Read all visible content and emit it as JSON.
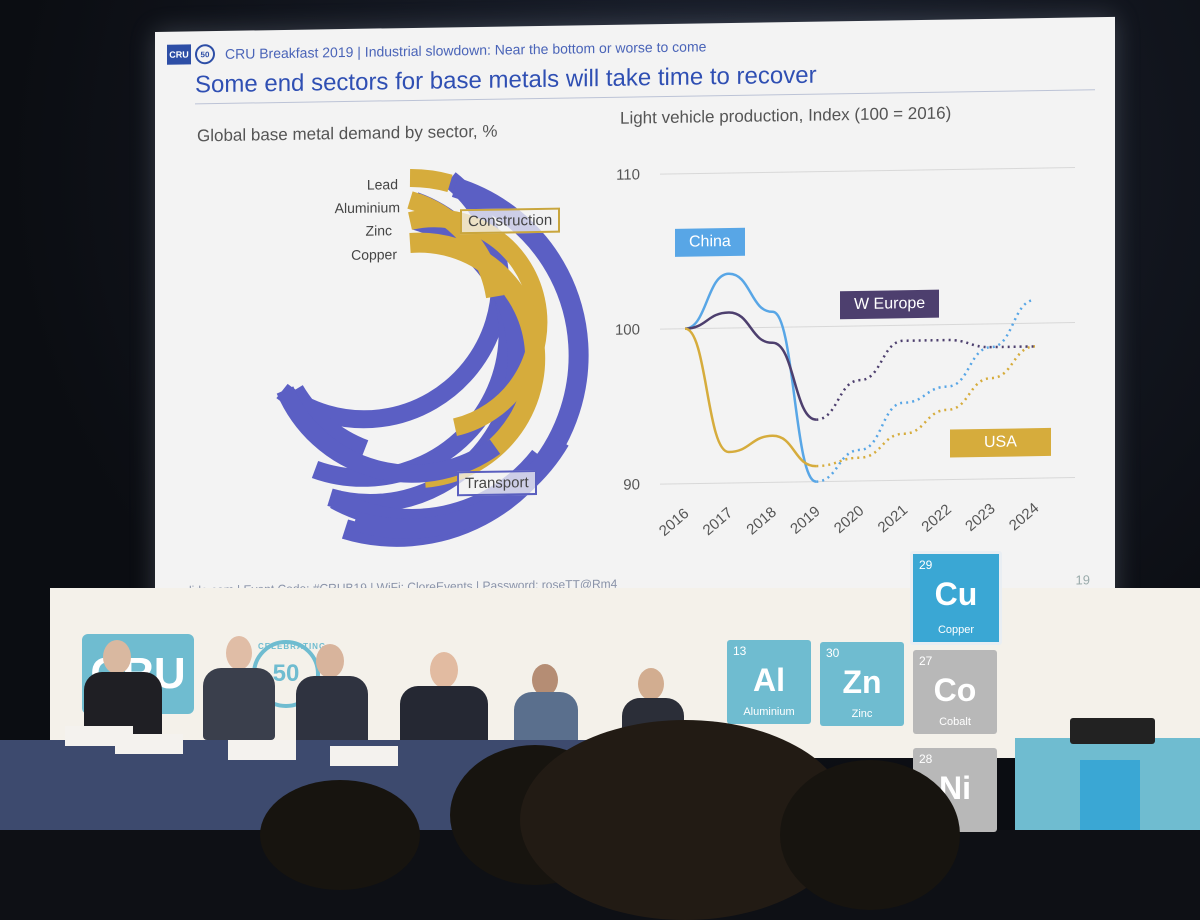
{
  "slide": {
    "header_logo": "CRU",
    "header_badge": "50",
    "header_text": "CRU Breakfast 2019  |  Industrial slowdown: Near the bottom or worse to come",
    "title": "Some end sectors for base metals will take time to recover",
    "left_subtitle": "Global base metal demand by sector, %",
    "right_subtitle": "Light vehicle production, Index (100 = 2016)",
    "donut_rings": [
      "Lead",
      "Aluminium",
      "Zinc",
      "Copper"
    ],
    "donut_callouts": {
      "construction": "Construction",
      "transport": "Transport"
    },
    "footer": "slido.com | Event Code: #CRUB19 | WiFi: CloreEvents | Password: roseTT@Rm4",
    "page_number": "19",
    "colors": {
      "gold": "#d6ac3c",
      "blue": "#5b5fc4",
      "china": "#58a6e6",
      "weurope": "#4d3f6e",
      "usa": "#d6ac3c",
      "title": "#2f4fb3"
    }
  },
  "chart_data": {
    "type": "line",
    "title": "Light vehicle production, Index (100 = 2016)",
    "x": [
      "2016",
      "2017",
      "2018",
      "2019",
      "2020",
      "2021",
      "2022",
      "2023",
      "2024"
    ],
    "ylim": [
      90,
      110
    ],
    "yticks": [
      "90",
      "100",
      "110"
    ],
    "series": [
      {
        "name": "China",
        "values": [
          100,
          103.5,
          101,
          90,
          92,
          95,
          96,
          98.5,
          101.5
        ],
        "color": "#58a6e6",
        "solid_until": "2019"
      },
      {
        "name": "W Europe",
        "values": [
          100,
          101,
          99,
          94,
          96.5,
          99,
          99,
          98.5,
          98.5
        ],
        "color": "#4d3f6e",
        "solid_until": "2019"
      },
      {
        "name": "USA",
        "values": [
          100,
          92,
          93,
          91,
          91.5,
          93,
          94.5,
          96.5,
          98.5
        ],
        "color": "#d6ac3c",
        "solid_until": "2019"
      }
    ],
    "legend_tags": {
      "china": "China",
      "weurope": "W Europe",
      "usa": "USA"
    }
  },
  "stage": {
    "tiles": [
      {
        "num": "13",
        "sym": "Al",
        "name": "Aluminium"
      },
      {
        "num": "30",
        "sym": "Zn",
        "name": "Zinc"
      },
      {
        "num": "27",
        "sym": "Co",
        "name": "Cobalt"
      },
      {
        "num": "28",
        "sym": "Ni",
        "name": ""
      },
      {
        "num": "29",
        "sym": "Cu",
        "name": "Copper"
      }
    ],
    "celebrating_badge": "50",
    "celebrating_text": "CELEBRATING",
    "brand_logo": "CRU"
  }
}
